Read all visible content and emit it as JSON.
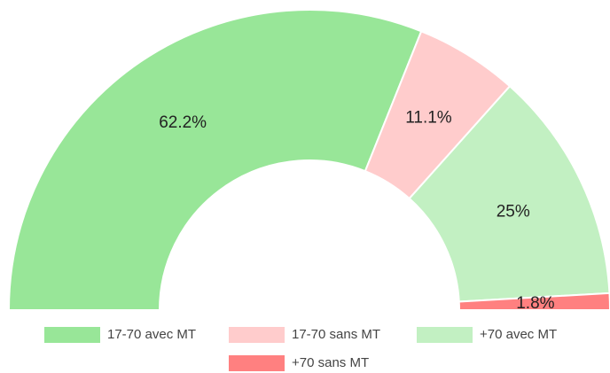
{
  "chart_data": {
    "type": "pie",
    "categories": [
      "17-70 avec MT",
      "17-70 sans MT",
      "+70 avec MT",
      "+70 sans MT"
    ],
    "values": [
      62.2,
      11.1,
      25,
      1.8
    ],
    "value_labels": [
      "62.2%",
      "11.1%",
      "25%",
      "1.8%"
    ],
    "colors": [
      "#98e698",
      "#ffcccc",
      "#c2f0c2",
      "#ff8080"
    ]
  }
}
